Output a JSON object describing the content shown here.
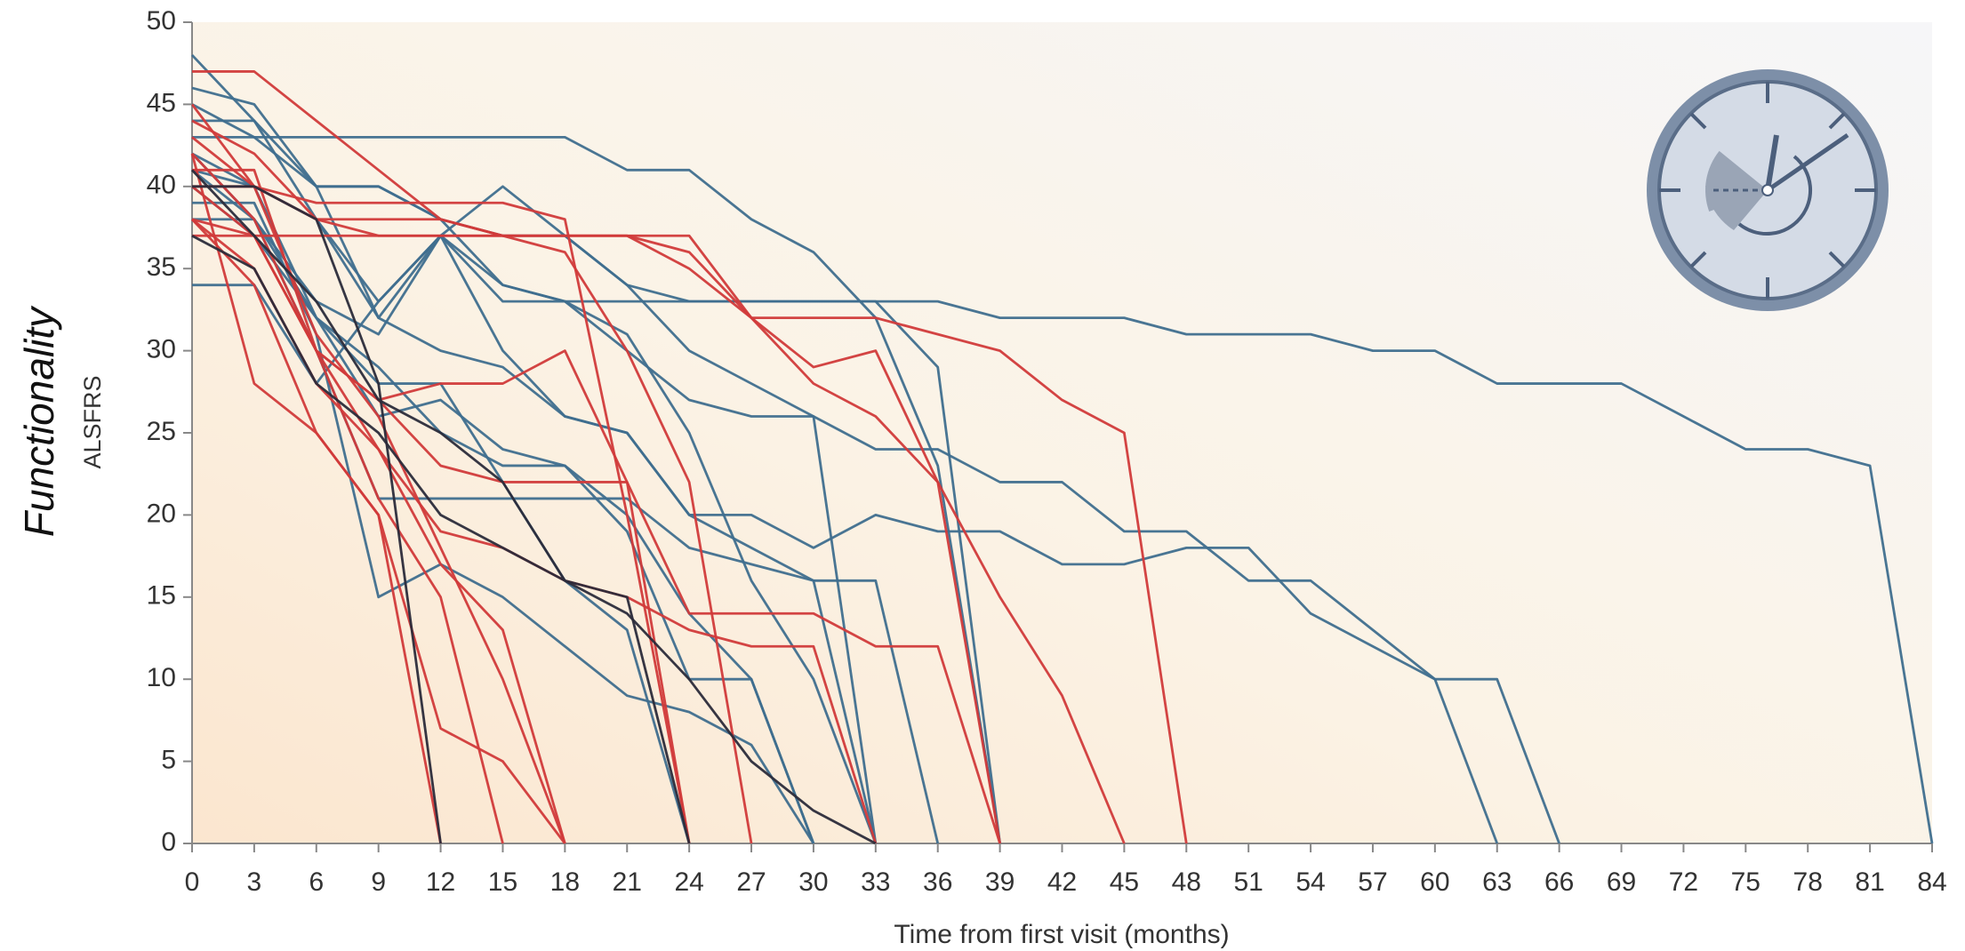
{
  "chart_data": {
    "type": "line",
    "ylabel": "Functionality",
    "ylabel_sub": "ALSFRS",
    "xlabel": "Time from first visit (months)",
    "x": [
      0,
      3,
      6,
      9,
      12,
      15,
      18,
      21,
      24,
      27,
      30,
      33,
      36,
      39,
      42,
      45,
      48,
      51,
      54,
      57,
      60,
      63,
      66,
      69,
      72,
      75,
      78,
      81,
      84
    ],
    "xlim": [
      0,
      84
    ],
    "xticks": [
      0,
      3,
      6,
      9,
      12,
      15,
      18,
      21,
      24,
      27,
      30,
      33,
      36,
      39,
      42,
      45,
      48,
      51,
      54,
      57,
      60,
      63,
      66,
      69,
      72,
      75,
      78,
      81,
      84
    ],
    "ylim": [
      0,
      50
    ],
    "yticks": [
      0,
      5,
      10,
      15,
      20,
      25,
      30,
      35,
      40,
      45,
      50
    ],
    "grid": false,
    "series": [
      {
        "color": "#3f6e8e",
        "values": [
          38,
          38,
          33,
          31,
          37,
          33,
          33,
          33,
          33,
          33,
          33,
          33,
          33,
          32,
          32,
          32,
          31,
          31,
          31,
          30,
          30,
          28,
          28,
          28,
          26,
          24,
          24,
          23,
          0
        ]
      },
      {
        "color": "#3f6e8e",
        "values": [
          46,
          45,
          40,
          32,
          37,
          30,
          26,
          25,
          20,
          20,
          18,
          20,
          19,
          19,
          17,
          17,
          18,
          18,
          14,
          12,
          10,
          0,
          null,
          null,
          null,
          null,
          null,
          null,
          null
        ]
      },
      {
        "color": "#3f6e8e",
        "values": [
          44,
          44,
          40,
          40,
          38,
          34,
          33,
          30,
          27,
          26,
          26,
          24,
          24,
          22,
          22,
          19,
          19,
          16,
          16,
          13,
          10,
          10,
          0,
          null,
          null,
          null,
          null,
          null,
          null
        ]
      },
      {
        "color": "#3f6e8e",
        "values": [
          45,
          43,
          40,
          40,
          38,
          37,
          37,
          34,
          33,
          33,
          33,
          33,
          29,
          0,
          null,
          null,
          null,
          null,
          null,
          null,
          null,
          null,
          null,
          null,
          null,
          null,
          null,
          null,
          null
        ]
      },
      {
        "color": "#3f6e8e",
        "values": [
          43,
          43,
          43,
          43,
          43,
          43,
          43,
          41,
          41,
          38,
          36,
          32,
          23,
          0,
          null,
          null,
          null,
          null,
          null,
          null,
          null,
          null,
          null,
          null,
          null,
          null,
          null,
          null,
          null
        ]
      },
      {
        "color": "#3f6e8e",
        "values": [
          48,
          44,
          38,
          32,
          30,
          29,
          26,
          25,
          20,
          18,
          16,
          16,
          0,
          null,
          null,
          null,
          null,
          null,
          null,
          null,
          null,
          null,
          null,
          null,
          null,
          null,
          null,
          null,
          null
        ]
      },
      {
        "color": "#3f6e8e",
        "values": [
          41,
          38,
          30,
          21,
          21,
          21,
          21,
          21,
          18,
          17,
          16,
          0,
          null,
          null,
          null,
          null,
          null,
          null,
          null,
          null,
          null,
          null,
          null,
          null,
          null,
          null,
          null,
          null,
          null
        ]
      },
      {
        "color": "#3f6e8e",
        "values": [
          42,
          40,
          32,
          26,
          27,
          24,
          23,
          20,
          14,
          10,
          0,
          null,
          null,
          null,
          null,
          null,
          null,
          null,
          null,
          null,
          null,
          null,
          null,
          null,
          null,
          null,
          null,
          null,
          null
        ]
      },
      {
        "color": "#3f6e8e",
        "values": [
          41,
          40,
          38,
          33,
          37,
          40,
          37,
          34,
          30,
          28,
          26,
          0,
          null,
          null,
          null,
          null,
          null,
          null,
          null,
          null,
          null,
          null,
          null,
          null,
          null,
          null,
          null,
          null,
          null
        ]
      },
      {
        "color": "#3f6e8e",
        "values": [
          39,
          39,
          31,
          15,
          17,
          15,
          12,
          9,
          8,
          6,
          0,
          null,
          null,
          null,
          null,
          null,
          null,
          null,
          null,
          null,
          null,
          null,
          null,
          null,
          null,
          null,
          null,
          null,
          null
        ]
      },
      {
        "color": "#3f6e8e",
        "values": [
          42,
          38,
          32,
          28,
          28,
          22,
          16,
          13,
          0,
          null,
          null,
          null,
          null,
          null,
          null,
          null,
          null,
          null,
          null,
          null,
          null,
          null,
          null,
          null,
          null,
          null,
          null,
          null,
          null
        ]
      },
      {
        "color": "#3f6e8e",
        "values": [
          40,
          37,
          32,
          29,
          25,
          23,
          23,
          19,
          10,
          10,
          0,
          null,
          null,
          null,
          null,
          null,
          null,
          null,
          null,
          null,
          null,
          null,
          null,
          null,
          null,
          null,
          null,
          null,
          null
        ]
      },
      {
        "color": "#3f6e8e",
        "values": [
          34,
          34,
          28,
          33,
          37,
          34,
          33,
          31,
          25,
          16,
          10,
          0,
          null,
          null,
          null,
          null,
          null,
          null,
          null,
          null,
          null,
          null,
          null,
          null,
          null,
          null,
          null,
          null,
          null
        ]
      },
      {
        "color": "#d13a3a",
        "values": [
          45,
          40,
          38,
          37,
          37,
          37,
          37,
          37,
          36,
          32,
          32,
          32,
          31,
          30,
          27,
          25,
          0,
          null,
          null,
          null,
          null,
          null,
          null,
          null,
          null,
          null,
          null,
          null,
          null
        ]
      },
      {
        "color": "#d13a3a",
        "values": [
          37,
          37,
          37,
          37,
          37,
          37,
          37,
          37,
          37,
          32,
          29,
          30,
          22,
          15,
          9,
          0,
          null,
          null,
          null,
          null,
          null,
          null,
          null,
          null,
          null,
          null,
          null,
          null,
          null
        ]
      },
      {
        "color": "#d13a3a",
        "values": [
          47,
          47,
          44,
          41,
          38,
          37,
          37,
          37,
          35,
          32,
          28,
          26,
          22,
          0,
          null,
          null,
          null,
          null,
          null,
          null,
          null,
          null,
          null,
          null,
          null,
          null,
          null,
          null,
          null
        ]
      },
      {
        "color": "#d13a3a",
        "values": [
          42,
          38,
          30,
          27,
          23,
          22,
          22,
          22,
          14,
          14,
          14,
          12,
          12,
          0,
          null,
          null,
          null,
          null,
          null,
          null,
          null,
          null,
          null,
          null,
          null,
          null,
          null,
          null,
          null
        ]
      },
      {
        "color": "#d13a3a",
        "values": [
          40,
          37,
          30,
          24,
          19,
          18,
          16,
          15,
          13,
          12,
          12,
          0,
          null,
          null,
          null,
          null,
          null,
          null,
          null,
          null,
          null,
          null,
          null,
          null,
          null,
          null,
          null,
          null,
          null
        ]
      },
      {
        "color": "#d13a3a",
        "values": [
          44,
          42,
          38,
          38,
          38,
          37,
          36,
          30,
          22,
          0,
          null,
          null,
          null,
          null,
          null,
          null,
          null,
          null,
          null,
          null,
          null,
          null,
          null,
          null,
          null,
          null,
          null,
          null,
          null
        ]
      },
      {
        "color": "#d13a3a",
        "values": [
          38,
          37,
          30,
          27,
          28,
          28,
          30,
          22,
          0,
          null,
          null,
          null,
          null,
          null,
          null,
          null,
          null,
          null,
          null,
          null,
          null,
          null,
          null,
          null,
          null,
          null,
          null,
          null,
          null
        ]
      },
      {
        "color": "#d13a3a",
        "values": [
          42,
          28,
          25,
          20,
          7,
          5,
          0,
          null,
          null,
          null,
          null,
          null,
          null,
          null,
          null,
          null,
          null,
          null,
          null,
          null,
          null,
          null,
          null,
          null,
          null,
          null,
          null,
          null,
          null
        ]
      },
      {
        "color": "#d13a3a",
        "values": [
          38,
          35,
          28,
          24,
          17,
          13,
          0,
          null,
          null,
          null,
          null,
          null,
          null,
          null,
          null,
          null,
          null,
          null,
          null,
          null,
          null,
          null,
          null,
          null,
          null,
          null,
          null,
          null,
          null
        ]
      },
      {
        "color": "#d13a3a",
        "values": [
          41,
          41,
          30,
          21,
          15,
          0,
          null,
          null,
          null,
          null,
          null,
          null,
          null,
          null,
          null,
          null,
          null,
          null,
          null,
          null,
          null,
          null,
          null,
          null,
          null,
          null,
          null,
          null,
          null
        ]
      },
      {
        "color": "#d13a3a",
        "values": [
          43,
          40,
          31,
          26,
          18,
          10,
          0,
          null,
          null,
          null,
          null,
          null,
          null,
          null,
          null,
          null,
          null,
          null,
          null,
          null,
          null,
          null,
          null,
          null,
          null,
          null,
          null,
          null,
          null
        ]
      },
      {
        "color": "#d13a3a",
        "values": [
          38,
          34,
          25,
          20,
          0,
          null,
          null,
          null,
          null,
          null,
          null,
          null,
          null,
          null,
          null,
          null,
          null,
          null,
          null,
          null,
          null,
          null,
          null,
          null,
          null,
          null,
          null,
          null,
          null
        ]
      },
      {
        "color": "#d13a3a",
        "values": [
          40,
          40,
          39,
          39,
          39,
          39,
          38,
          20,
          0,
          null,
          null,
          null,
          null,
          null,
          null,
          null,
          null,
          null,
          null,
          null,
          null,
          null,
          null,
          null,
          null,
          null,
          null,
          null,
          null
        ]
      },
      {
        "color": "#2b2b3a",
        "values": [
          40,
          40,
          38,
          28,
          0,
          null,
          null,
          null,
          null,
          null,
          null,
          null,
          null,
          null,
          null,
          null,
          null,
          null,
          null,
          null,
          null,
          null,
          null,
          null,
          null,
          null,
          null,
          null,
          null
        ]
      },
      {
        "color": "#2b2b3a",
        "values": [
          37,
          35,
          28,
          25,
          20,
          18,
          16,
          15,
          0,
          null,
          null,
          null,
          null,
          null,
          null,
          null,
          null,
          null,
          null,
          null,
          null,
          null,
          null,
          null,
          null,
          null,
          null,
          null,
          null
        ]
      },
      {
        "color": "#2b2b3a",
        "values": [
          41,
          37,
          33,
          27,
          25,
          22,
          16,
          14,
          10,
          5,
          2,
          0,
          null,
          null,
          null,
          null,
          null,
          null,
          null,
          null,
          null,
          null,
          null,
          null,
          null,
          null,
          null,
          null,
          null
        ]
      }
    ]
  }
}
